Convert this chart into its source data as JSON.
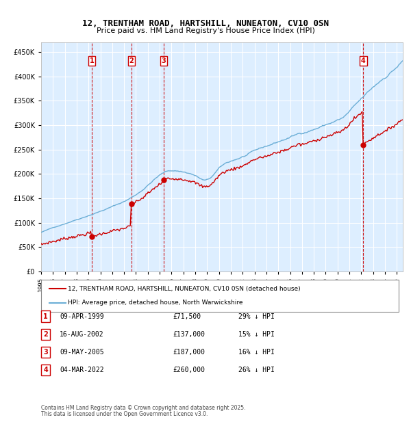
{
  "title": "12, TRENTHAM ROAD, HARTSHILL, NUNEATON, CV10 0SN",
  "subtitle": "Price paid vs. HM Land Registry's House Price Index (HPI)",
  "legend_line1": "12, TRENTHAM ROAD, HARTSHILL, NUNEATON, CV10 0SN (detached house)",
  "legend_line2": "HPI: Average price, detached house, North Warwickshire",
  "footer1": "Contains HM Land Registry data © Crown copyright and database right 2025.",
  "footer2": "This data is licensed under the Open Government Licence v3.0.",
  "sales": [
    {
      "label": "1",
      "date": "09-APR-1999",
      "price": 71500,
      "pct": "29%",
      "year": 1999.27
    },
    {
      "label": "2",
      "date": "16-AUG-2002",
      "price": 137000,
      "pct": "15%",
      "year": 2002.62
    },
    {
      "label": "3",
      "date": "09-MAY-2005",
      "price": 187000,
      "pct": "16%",
      "year": 2005.35
    },
    {
      "label": "4",
      "date": "04-MAR-2022",
      "price": 260000,
      "pct": "26%",
      "year": 2022.17
    }
  ],
  "hpi_color": "#6baed6",
  "price_color": "#cc0000",
  "vline_color": "#cc0000",
  "bg_color": "#ddeeff",
  "plot_bg": "#eef4ff",
  "grid_color": "#ffffff",
  "ylim": [
    0,
    470000
  ],
  "xlim_start": 1995.0,
  "xlim_end": 2025.5
}
